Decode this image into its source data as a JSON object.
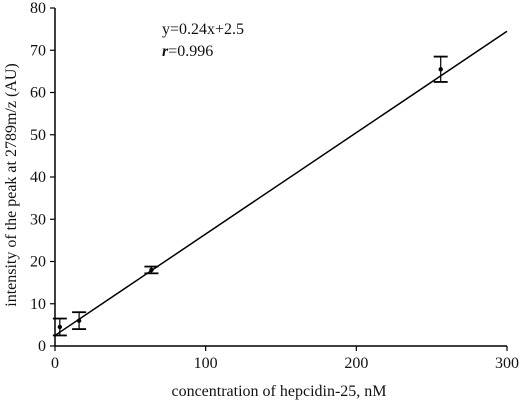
{
  "chart_data": {
    "type": "scatter",
    "xlabel": "concentration of hepcidin-25, nM",
    "ylabel": "intensity of the peak at 2789m/z (AU)",
    "xlim": [
      0,
      300
    ],
    "ylim": [
      0,
      80
    ],
    "x_ticks": [
      0,
      100,
      200,
      300
    ],
    "y_ticks": [
      0,
      10,
      20,
      30,
      40,
      50,
      60,
      70,
      80
    ],
    "grid": false,
    "points": [
      {
        "x": 3.2,
        "y": 4.5,
        "err": 2.0
      },
      {
        "x": 16,
        "y": 6.0,
        "err": 2.0
      },
      {
        "x": 64,
        "y": 18.0,
        "err": 0.8
      },
      {
        "x": 256,
        "y": 65.5,
        "err": 3.0
      }
    ],
    "fit_line": {
      "slope": 0.24,
      "intercept": 2.5,
      "x_range": [
        0,
        300
      ]
    },
    "annotations": {
      "equation": "y=0.24x+2.5",
      "r_symbol": "r",
      "r_value": "=0.996"
    }
  }
}
